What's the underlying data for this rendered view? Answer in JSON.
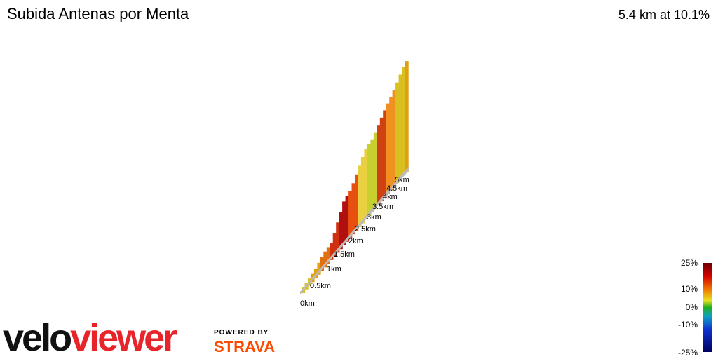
{
  "header": {
    "title": "Subida Antenas por Menta",
    "summary": "5.4 km at 10.1%"
  },
  "distance_labels": [
    "0km",
    "0.5km",
    "1km",
    "1.5km",
    "2km",
    "2.5km",
    "3km",
    "3.5km",
    "4km",
    "4.5km",
    "5km"
  ],
  "color_scale": {
    "labels": [
      "25%",
      "10%",
      "0%",
      "-10%",
      "-25%"
    ]
  },
  "branding": {
    "logo_start": "velo",
    "logo_end": "viewer",
    "powered_by": "POWERED BY",
    "partner": "STRAVA"
  }
}
